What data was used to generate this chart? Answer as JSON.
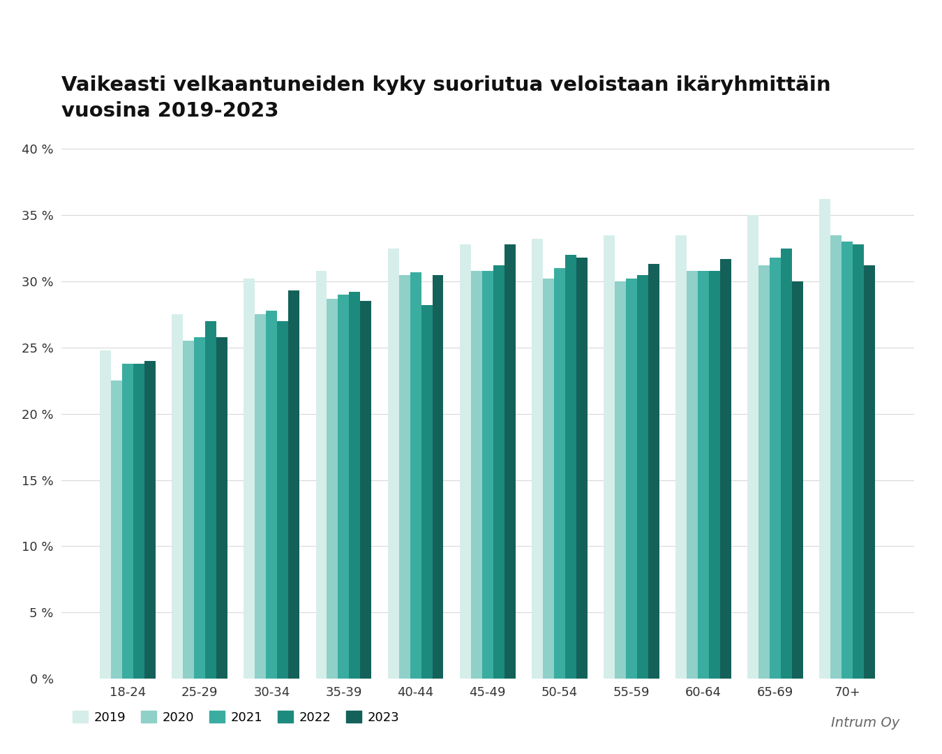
{
  "title": "Vaikeasti velkaantuneiden kyky suoriutua veloistaan ikäryhmittäin\nvuosina 2019-2023",
  "categories": [
    "18-24",
    "25-29",
    "30-34",
    "35-39",
    "40-44",
    "45-49",
    "50-54",
    "55-59",
    "60-64",
    "65-69",
    "70+"
  ],
  "years": [
    "2019",
    "2020",
    "2021",
    "2022",
    "2023"
  ],
  "colors": [
    "#d6eeea",
    "#8fd0c8",
    "#3aada0",
    "#1d8a7e",
    "#14615a"
  ],
  "data": {
    "2019": [
      24.8,
      27.5,
      30.2,
      30.8,
      32.5,
      32.8,
      33.2,
      33.5,
      33.5,
      35.0,
      36.2
    ],
    "2020": [
      22.5,
      25.5,
      27.5,
      28.7,
      30.5,
      30.8,
      30.2,
      30.0,
      30.8,
      31.2,
      33.5
    ],
    "2021": [
      23.8,
      25.8,
      27.8,
      29.0,
      30.7,
      30.8,
      31.0,
      30.2,
      30.8,
      31.8,
      33.0
    ],
    "2022": [
      23.8,
      27.0,
      27.0,
      29.2,
      28.2,
      31.2,
      32.0,
      30.5,
      30.8,
      32.5,
      32.8
    ],
    "2023": [
      24.0,
      25.8,
      29.3,
      28.5,
      30.5,
      32.8,
      31.8,
      31.3,
      31.7,
      30.0,
      31.2
    ]
  },
  "ylim": [
    0,
    41
  ],
  "yticks": [
    0,
    5,
    10,
    15,
    20,
    25,
    30,
    35,
    40
  ],
  "ytick_labels": [
    "0 %",
    "5 %",
    "10 %",
    "15 %",
    "20 %",
    "25 %",
    "30 %",
    "35 %",
    "40 %"
  ],
  "background_color": "#ffffff",
  "grid_color": "#d8d8d8",
  "title_fontsize": 21,
  "tick_fontsize": 13,
  "legend_fontsize": 13,
  "bar_width": 0.155,
  "watermark": "Intrum Oy"
}
